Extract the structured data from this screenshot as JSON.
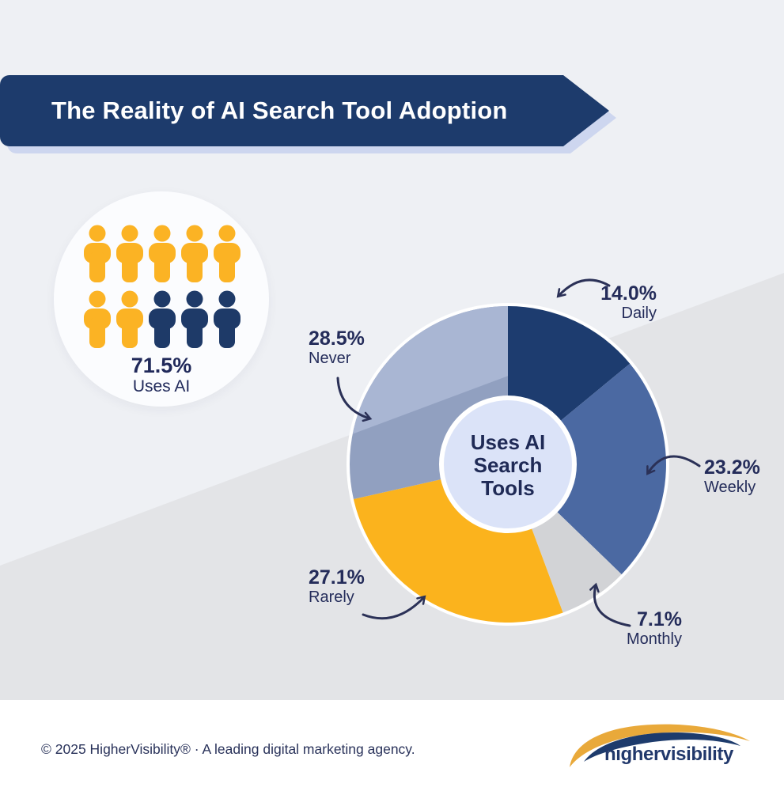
{
  "banner": {
    "title": "The Reality of AI Search Tool Adoption"
  },
  "pictogram": {
    "stat_value": "71.5%",
    "stat_label": "Uses AI",
    "total_icons": 10,
    "user_icons": 7,
    "icon_colors": [
      "#fbb324",
      "#fbb324",
      "#fbb324",
      "#fbb324",
      "#fbb324",
      "#fbb324",
      "#fbb324",
      "#1e3a68",
      "#1e3a68",
      "#1e3a68"
    ]
  },
  "chart_data": {
    "type": "pie",
    "title": "The Reality of AI Search Tool Adoption",
    "center_label_lines": [
      "Uses AI",
      "Search",
      "Tools"
    ],
    "start_angle_deg": 0,
    "direction": "clockwise",
    "legend_position": "around",
    "segments": [
      {
        "label": "Daily",
        "display": "14.0%",
        "value": 14.0,
        "color": "#1d3c6f"
      },
      {
        "label": "Weekly",
        "display": "23.2%",
        "value": 23.2,
        "color": "#4b69a2",
        "color_light": "#5a76ad"
      },
      {
        "label": "Monthly",
        "display": "7.1%",
        "value": 7.1,
        "color": "#d2d3d6"
      },
      {
        "label": "Rarely",
        "display": "27.1%",
        "value": 27.1,
        "color": "#fbb31d"
      },
      {
        "label": "Never",
        "display": "28.5%",
        "value": 28.5,
        "color": "#91a0c0",
        "color_light": "#a9b6d3"
      }
    ]
  },
  "colors": {
    "background_light": "#eef0f4",
    "background_shade": "#e3e4e7",
    "banner_navy": "#1d3b6c",
    "banner_shadow": "#cdd6ef",
    "accent_yellow": "#fbb324",
    "accent_navy": "#1e3a68",
    "text_navy": "#242c5a",
    "center_circle_fill": "#dbe3f8",
    "logo_gold": "#e9a93a",
    "logo_navy": "#1d3b6c"
  },
  "footer": {
    "copyright": "© 2025 HigherVisibility® · A leading digital marketing agency.",
    "logo_text": "highervisibility"
  }
}
